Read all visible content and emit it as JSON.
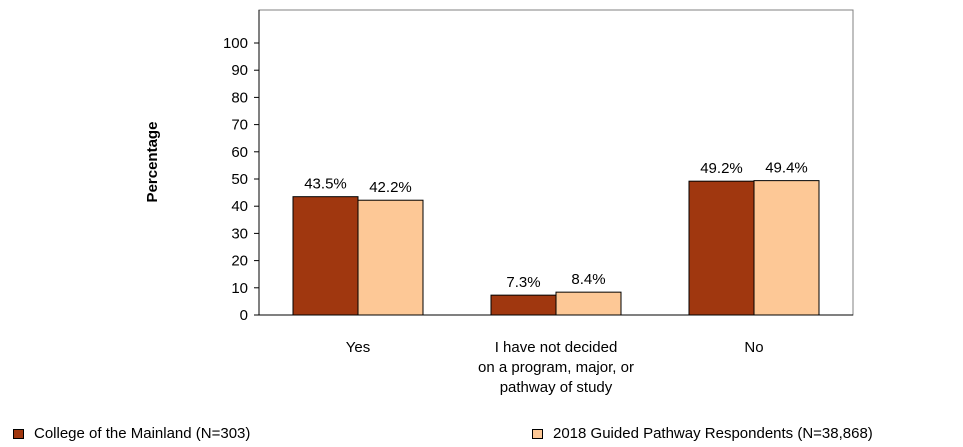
{
  "chart_data": {
    "type": "bar",
    "categories": [
      [
        "Yes"
      ],
      [
        "I have not decided",
        "on a program, major, or",
        "pathway of study"
      ],
      [
        "No"
      ]
    ],
    "series": [
      {
        "name": "College of the Mainland (N=303)",
        "values": [
          43.5,
          7.3,
          49.2
        ],
        "labels": [
          "43.5%",
          "7.3%",
          "49.2%"
        ],
        "color": "#a0370f"
      },
      {
        "name": "2018 Guided Pathway Respondents (N=38,868)",
        "values": [
          42.2,
          8.4,
          49.4
        ],
        "labels": [
          "42.2%",
          "8.4%",
          "49.4%"
        ],
        "color": "#fdc896"
      }
    ],
    "ylabel": "Percentage",
    "xlabel": "",
    "ylim": [
      0,
      100
    ],
    "yticks": [
      0,
      10,
      20,
      30,
      40,
      50,
      60,
      70,
      80,
      90,
      100
    ],
    "grid": false,
    "legend_position": "bottom"
  }
}
